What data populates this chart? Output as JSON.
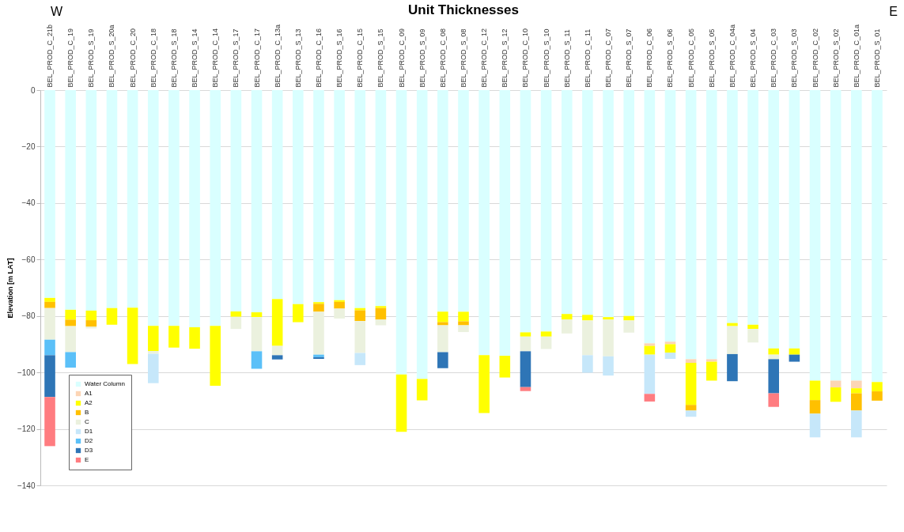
{
  "chart_data": {
    "type": "bar",
    "stacked": true,
    "title": "Unit Thicknesses",
    "ylabel": "Elevation [m LAT]",
    "annotations": [
      "W",
      "E"
    ],
    "categories": [
      "BEL_PROD_C_21b",
      "BEL_PROD_C_19",
      "BEL_PROD_S_19",
      "BEL_PROD_S_20a",
      "BEL_PROD_C_20",
      "BEL_PROD_C_18",
      "BEL_PROD_S_18",
      "BEL_PROD_S_14",
      "BEL_PROD_C_14",
      "BEL_PROD_S_17",
      "BEL_PROD_C_17",
      "BEL_PROD_C_13a",
      "BEL_PROD_S_13",
      "BEL_PROD_C_16",
      "BEL_PROD_S_16",
      "BEL_PROD_C_15",
      "BEL_PROD_S_15",
      "BEL_PROD_C_09",
      "BEL_PROD_S_09",
      "BEL_PROD_C_08",
      "BEL_PROD_S_08",
      "BEL_PROD_C_12",
      "BEL_PROD_S_12",
      "BEL_PROD_C_10",
      "BEL_PROD_S_10",
      "BEL_PROD_S_11",
      "BEL_PROD_C_11",
      "BEL_PROD_C_07",
      "BEL_PROD_S_07",
      "BEL_PROD_C_06",
      "BEL_PROD_S_06",
      "BEL_PROD_C_05",
      "BEL_PROD_S_05",
      "BEL_PROD_C_04a",
      "BEL_PROD_S_04",
      "BEL_PROD_C_03",
      "BEL_PROD_S_03",
      "BEL_PROD_C_02",
      "BEL_PROD_S_02",
      "BEL_PROD_C_01a",
      "BEL_PROD_S_01"
    ],
    "series": [
      {
        "name": "Water Column",
        "color": "#d9ffff",
        "values": [
          -73.6,
          -77.8,
          -78.1,
          -77.2,
          -77.1,
          -83.5,
          -83.5,
          -84.0,
          -83.5,
          -78.4,
          -78.7,
          -74.0,
          -75.8,
          -75.1,
          -74.4,
          -77.2,
          -76.5,
          -100.7,
          -102.3,
          -78.5,
          -78.5,
          -93.9,
          -94.1,
          -85.8,
          -85.5,
          -79.3,
          -79.6,
          -80.4,
          -80.0,
          -89.7,
          -89.1,
          -95.3,
          -95.3,
          -82.5,
          -83.1,
          -91.5,
          -91.5,
          -102.9,
          -102.9,
          -102.9,
          -103.4
        ]
      },
      {
        "name": "A1",
        "color": "#fcd5b5",
        "values": [
          null,
          null,
          null,
          null,
          null,
          null,
          null,
          null,
          null,
          null,
          null,
          null,
          null,
          null,
          null,
          null,
          null,
          null,
          null,
          null,
          null,
          null,
          null,
          null,
          null,
          null,
          null,
          null,
          null,
          -0.9,
          -0.9,
          -1.3,
          -0.9,
          null,
          null,
          null,
          null,
          null,
          -2.4,
          -2.7,
          null
        ]
      },
      {
        "name": "A2",
        "color": "#ffff00",
        "values": [
          -1.4,
          -3.5,
          -3.4,
          -5.9,
          -19.9,
          -8.9,
          -7.7,
          -7.6,
          -21.2,
          -1.9,
          -1.7,
          -16.6,
          -6.4,
          -0.6,
          -0.6,
          -0.8,
          -0.7,
          -20.3,
          -7.6,
          -3.7,
          -3.4,
          -20.5,
          -7.7,
          -1.5,
          -1.8,
          -2.0,
          -2.0,
          -0.9,
          -1.6,
          -3.1,
          -3.0,
          -14.9,
          -6.7,
          -1.1,
          -1.5,
          -2.2,
          -2.2,
          -6.9,
          -5.1,
          -1.8,
          -3.3
        ]
      },
      {
        "name": "B",
        "color": "#ffc000",
        "values": [
          -2.2,
          -2.3,
          -2.3,
          null,
          null,
          null,
          null,
          null,
          null,
          null,
          null,
          null,
          null,
          -2.8,
          -2.4,
          -3.8,
          -4.1,
          null,
          null,
          -1.1,
          -1.4,
          null,
          null,
          null,
          null,
          null,
          null,
          null,
          null,
          null,
          null,
          -2.0,
          null,
          null,
          null,
          null,
          null,
          -4.8,
          null,
          -6.1,
          -3.3
        ]
      },
      {
        "name": "C",
        "color": "#ebf1de",
        "values": [
          -11.2,
          -9.2,
          -0.6,
          null,
          null,
          -1.0,
          null,
          null,
          null,
          -4.3,
          -12.1,
          -3.3,
          null,
          -15.2,
          -3.5,
          -11.3,
          -2.0,
          null,
          null,
          -9.5,
          -2.4,
          null,
          null,
          -5.2,
          -4.4,
          -4.9,
          -12.3,
          -13.0,
          -4.3,
          null,
          null,
          null,
          null,
          -9.9,
          -4.8,
          -1.6,
          null,
          null,
          null,
          null,
          null
        ]
      },
      {
        "name": "D1",
        "color": "#c6e7fa",
        "values": [
          null,
          null,
          null,
          null,
          null,
          -10.4,
          null,
          null,
          null,
          null,
          null,
          null,
          null,
          null,
          null,
          -4.3,
          null,
          null,
          null,
          null,
          null,
          null,
          null,
          null,
          null,
          null,
          -6.2,
          -6.8,
          null,
          -13.9,
          -2.2,
          -2.2,
          null,
          null,
          null,
          null,
          null,
          -8.4,
          null,
          -9.5,
          null
        ]
      },
      {
        "name": "D2",
        "color": "#5bc0f8",
        "values": [
          -5.5,
          -5.5,
          null,
          null,
          null,
          null,
          null,
          null,
          null,
          null,
          -6.2,
          null,
          null,
          -0.9,
          null,
          null,
          null,
          null,
          null,
          null,
          null,
          null,
          null,
          null,
          null,
          null,
          null,
          null,
          null,
          null,
          null,
          null,
          null,
          null,
          null,
          null,
          null,
          null,
          null,
          null,
          null
        ]
      },
      {
        "name": "D3",
        "color": "#2e75b6",
        "values": [
          -14.8,
          null,
          null,
          null,
          null,
          null,
          null,
          null,
          null,
          null,
          null,
          -1.5,
          null,
          -0.6,
          null,
          null,
          null,
          null,
          null,
          -5.7,
          null,
          null,
          null,
          -12.7,
          null,
          null,
          null,
          null,
          null,
          null,
          null,
          null,
          null,
          -9.6,
          null,
          -12.1,
          -2.5,
          null,
          null,
          null,
          null
        ]
      },
      {
        "name": "E",
        "color": "#ff7c80",
        "values": [
          -17.4,
          null,
          null,
          null,
          null,
          null,
          null,
          null,
          null,
          null,
          null,
          null,
          null,
          null,
          null,
          null,
          null,
          null,
          null,
          null,
          null,
          null,
          null,
          -1.4,
          null,
          null,
          null,
          null,
          null,
          -2.7,
          null,
          null,
          null,
          null,
          null,
          -4.8,
          null,
          null,
          null,
          null,
          null
        ]
      }
    ],
    "ylim": [
      -140,
      0
    ],
    "yticks": [
      -140,
      -120,
      -100,
      -80,
      -60,
      -40,
      -20,
      0
    ],
    "grid": "y",
    "legend": "bottom left"
  }
}
